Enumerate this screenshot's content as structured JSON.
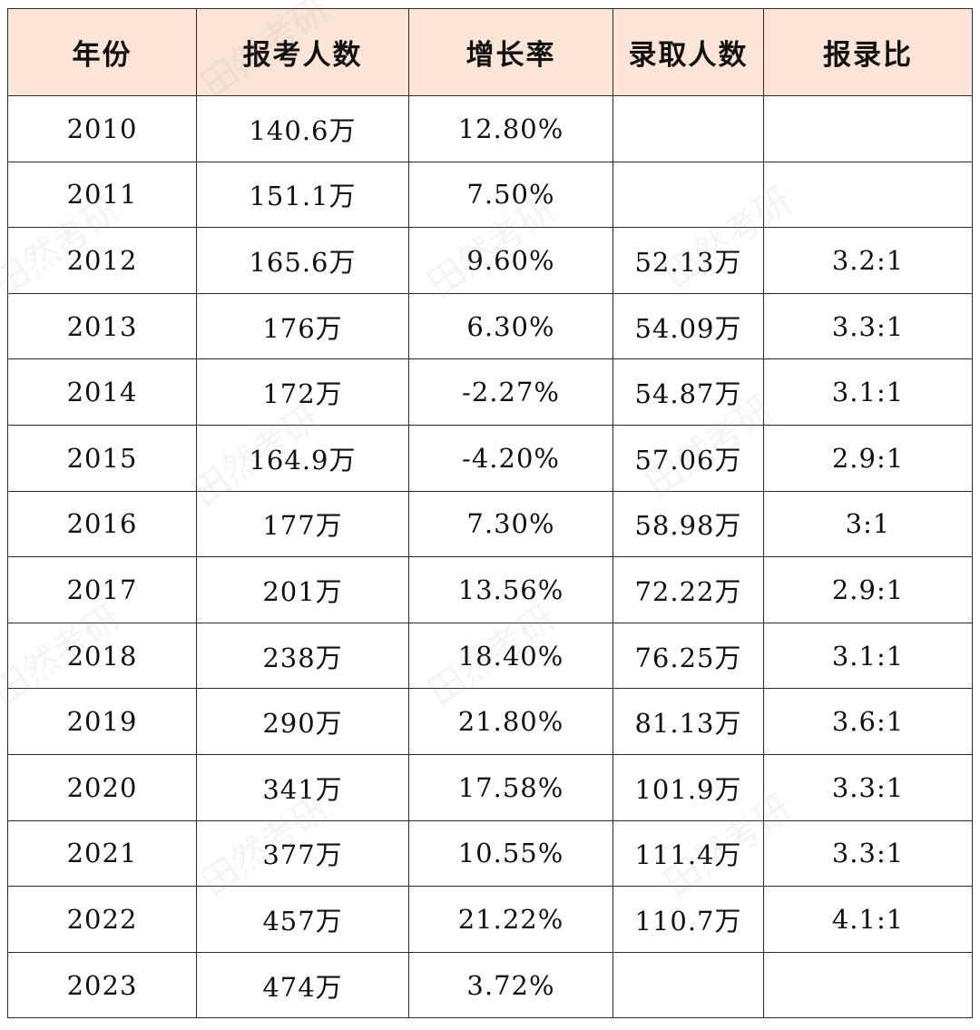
{
  "table": {
    "headers": [
      "年份",
      "报考人数",
      "增长率",
      "录取人数",
      "报录比"
    ],
    "rows": [
      [
        "2010",
        "140.6万",
        "12.80%",
        "",
        ""
      ],
      [
        "2011",
        "151.1万",
        "7.50%",
        "",
        ""
      ],
      [
        "2012",
        "165.6万",
        "9.60%",
        "52.13万",
        "3.2:1"
      ],
      [
        "2013",
        "176万",
        "6.30%",
        "54.09万",
        "3.3:1"
      ],
      [
        "2014",
        "172万",
        "-2.27%",
        "54.87万",
        "3.1:1"
      ],
      [
        "2015",
        "164.9万",
        "-4.20%",
        "57.06万",
        "2.9:1"
      ],
      [
        "2016",
        "177万",
        "7.30%",
        "58.98万",
        "3:1"
      ],
      [
        "2017",
        "201万",
        "13.56%",
        "72.22万",
        "2.9:1"
      ],
      [
        "2018",
        "238万",
        "18.40%",
        "76.25万",
        "3.1:1"
      ],
      [
        "2019",
        "290万",
        "21.80%",
        "81.13万",
        "3.6:1"
      ],
      [
        "2020",
        "341万",
        "17.58%",
        "101.9万",
        "3.3:1"
      ],
      [
        "2021",
        "377万",
        "10.55%",
        "111.4万",
        "3.3:1"
      ],
      [
        "2022",
        "457万",
        "21.22%",
        "110.7万",
        "4.1:1"
      ],
      [
        "2023",
        "474万",
        "3.72%",
        "",
        ""
      ]
    ]
  },
  "watermark": "田然考研",
  "colors": {
    "header_bg": "#fce4d6",
    "border": "#2b2b2b",
    "text": "#111111"
  }
}
